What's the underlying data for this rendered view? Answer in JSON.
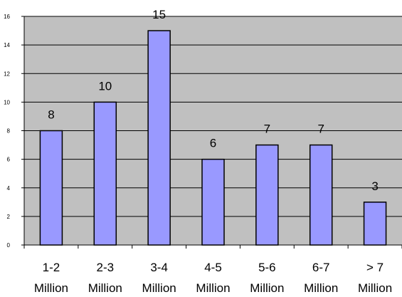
{
  "chart_data": {
    "type": "bar",
    "categories": [
      [
        "1-2",
        "Million"
      ],
      [
        "2-3",
        "Million"
      ],
      [
        "3-4",
        "Million"
      ],
      [
        "4-5",
        "Million"
      ],
      [
        "5-6",
        "Million"
      ],
      [
        "6-7",
        "Million"
      ],
      [
        "> 7",
        "Million"
      ]
    ],
    "values": [
      8,
      10,
      15,
      6,
      7,
      7,
      3
    ],
    "data_labels": [
      "8",
      "10",
      "15",
      "6",
      "7",
      "7",
      "3"
    ],
    "yticks": [
      "0",
      "2",
      "4",
      "6",
      "8",
      "10",
      "12",
      "14",
      "16"
    ],
    "ylim": [
      0,
      16
    ],
    "grid": true,
    "legend": "none",
    "colors": {
      "plot_background": "#c0c0c0",
      "bar_fill": "#9999ff",
      "bar_stroke": "#000000",
      "gridline": "#000000"
    }
  }
}
